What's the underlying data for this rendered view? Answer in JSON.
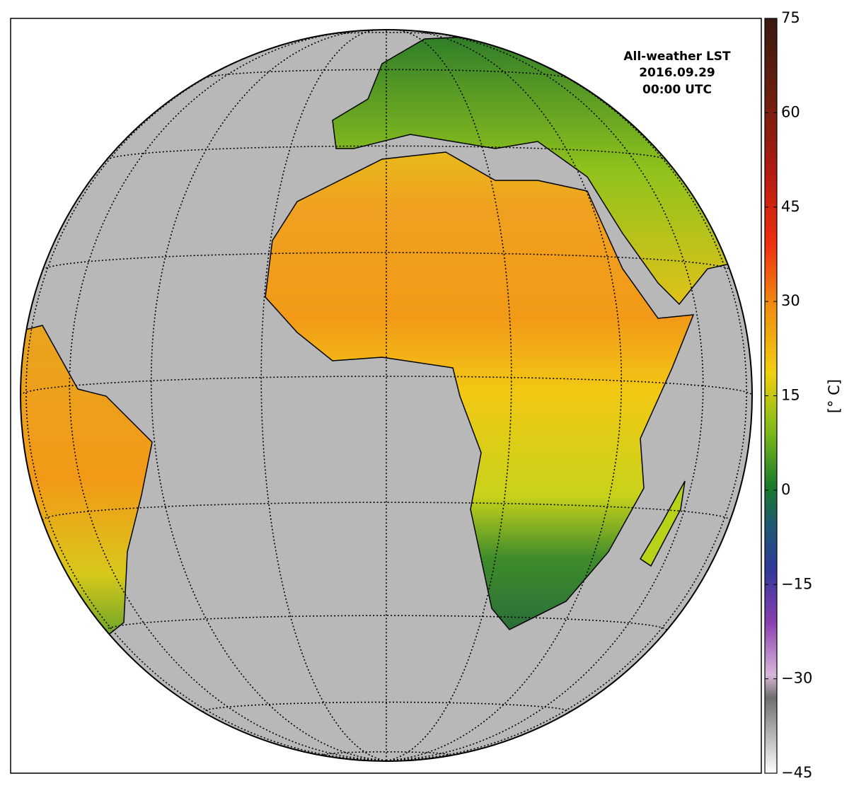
{
  "title_lines": [
    "All-weather LST",
    "2016.09.29",
    "00:00 UTC"
  ],
  "colorbar": {
    "label": "[$^\\circ$ C]",
    "printed_label": "[° C]",
    "lim": [
      -45,
      75
    ],
    "ticks": [
      {
        "value": -45,
        "label": "−45"
      },
      {
        "value": -30,
        "label": "−30"
      },
      {
        "value": -15,
        "label": "−15"
      },
      0,
      15,
      30,
      45,
      60,
      75
    ]
  }
}
